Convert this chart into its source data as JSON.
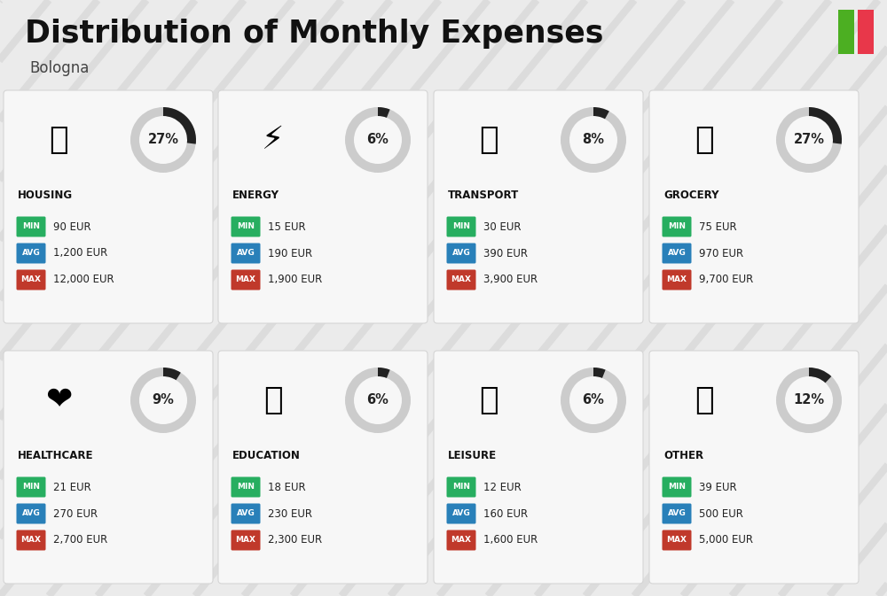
{
  "title": "Distribution of Monthly Expenses",
  "subtitle": "Bologna",
  "background_color": "#ebebeb",
  "categories": [
    {
      "name": "HOUSING",
      "pct": 27,
      "min": "90 EUR",
      "avg": "1,200 EUR",
      "max": "12,000 EUR",
      "emoji": "🏗",
      "row": 0,
      "col": 0
    },
    {
      "name": "ENERGY",
      "pct": 6,
      "min": "15 EUR",
      "avg": "190 EUR",
      "max": "1,900 EUR",
      "emoji": "⚡",
      "row": 0,
      "col": 1
    },
    {
      "name": "TRANSPORT",
      "pct": 8,
      "min": "30 EUR",
      "avg": "390 EUR",
      "max": "3,900 EUR",
      "emoji": "🚌",
      "row": 0,
      "col": 2
    },
    {
      "name": "GROCERY",
      "pct": 27,
      "min": "75 EUR",
      "avg": "970 EUR",
      "max": "9,700 EUR",
      "emoji": "🛒",
      "row": 0,
      "col": 3
    },
    {
      "name": "HEALTHCARE",
      "pct": 9,
      "min": "21 EUR",
      "avg": "270 EUR",
      "max": "2,700 EUR",
      "emoji": "❤",
      "row": 1,
      "col": 0
    },
    {
      "name": "EDUCATION",
      "pct": 6,
      "min": "18 EUR",
      "avg": "230 EUR",
      "max": "2,300 EUR",
      "emoji": "🎓",
      "row": 1,
      "col": 1
    },
    {
      "name": "LEISURE",
      "pct": 6,
      "min": "12 EUR",
      "avg": "160 EUR",
      "max": "1,600 EUR",
      "emoji": "🛍",
      "row": 1,
      "col": 2
    },
    {
      "name": "OTHER",
      "pct": 12,
      "min": "39 EUR",
      "avg": "500 EUR",
      "max": "5,000 EUR",
      "emoji": "👜",
      "row": 1,
      "col": 3
    }
  ],
  "min_color": "#27ae60",
  "avg_color": "#2980b9",
  "max_color": "#c0392b",
  "arc_filled_color": "#222222",
  "arc_empty_color": "#cccccc",
  "italy_green": "#4caf22",
  "italy_red": "#e8374a",
  "badge_text_color": "#ffffff",
  "value_text_color": "#222222",
  "title_color": "#111111",
  "name_color": "#111111"
}
